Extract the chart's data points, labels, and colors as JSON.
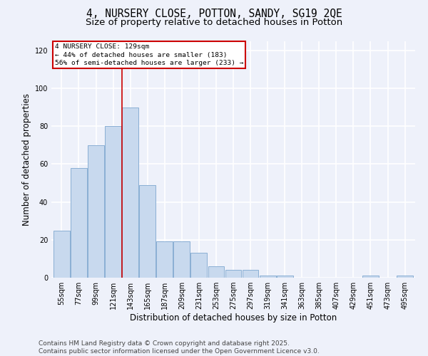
{
  "title": "4, NURSERY CLOSE, POTTON, SANDY, SG19 2QE",
  "subtitle": "Size of property relative to detached houses in Potton",
  "xlabel": "Distribution of detached houses by size in Potton",
  "ylabel": "Number of detached properties",
  "categories": [
    "55sqm",
    "77sqm",
    "99sqm",
    "121sqm",
    "143sqm",
    "165sqm",
    "187sqm",
    "209sqm",
    "231sqm",
    "253sqm",
    "275sqm",
    "297sqm",
    "319sqm",
    "341sqm",
    "363sqm",
    "385sqm",
    "407sqm",
    "429sqm",
    "451sqm",
    "473sqm",
    "495sqm"
  ],
  "values": [
    25,
    58,
    70,
    80,
    90,
    49,
    19,
    19,
    13,
    6,
    4,
    4,
    1,
    1,
    0,
    0,
    0,
    0,
    1,
    0,
    1
  ],
  "bar_color": "#c8d9ee",
  "bar_edge_color": "#8aafd4",
  "background_color": "#eef1fa",
  "grid_color": "#ffffff",
  "property_label": "4 NURSERY CLOSE: 129sqm",
  "annotation_line1": "← 44% of detached houses are smaller (183)",
  "annotation_line2": "56% of semi-detached houses are larger (233) →",
  "vline_color": "#cc0000",
  "ylim": [
    0,
    125
  ],
  "yticks": [
    0,
    20,
    40,
    60,
    80,
    100,
    120
  ],
  "title_fontsize": 10.5,
  "subtitle_fontsize": 9.5,
  "axis_label_fontsize": 8.5,
  "tick_fontsize": 7,
  "footer_fontsize": 6.5,
  "footer": "Contains HM Land Registry data © Crown copyright and database right 2025.\nContains public sector information licensed under the Open Government Licence v3.0."
}
